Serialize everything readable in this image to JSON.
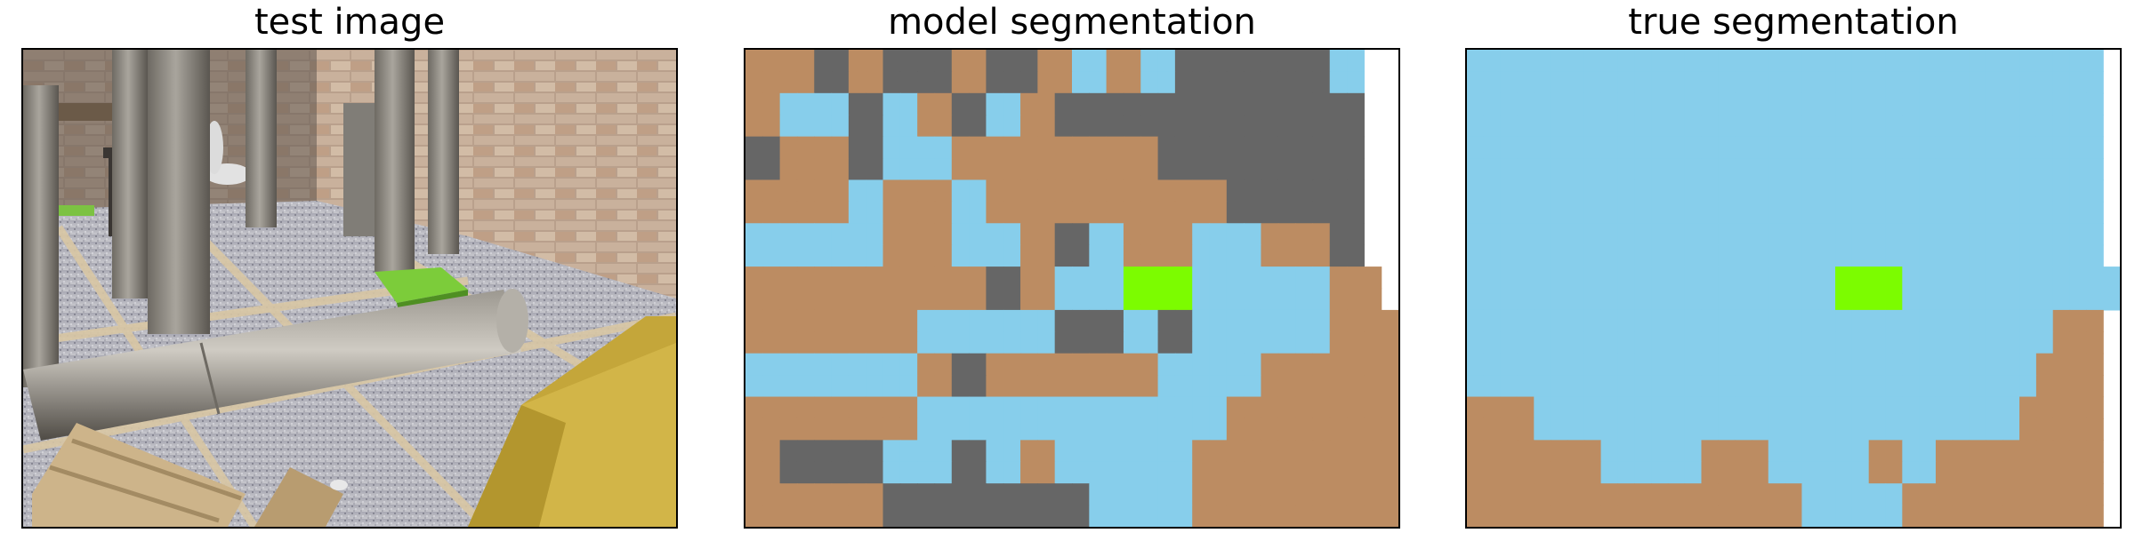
{
  "titles": [
    "test image",
    "model segmentation",
    "true segmentation"
  ],
  "palette": {
    "sky": "#87ceeb",
    "wood": "#bc8c62",
    "concrete": "#666666",
    "grass": "#7cfc00"
  },
  "legend_codes": {
    "S": "sky",
    "W": "wood",
    "C": "concrete",
    "G": "grass"
  },
  "model_segmentation_grid": [
    "WWWWCCWWCCCCWWCCCWWSSWWSSCCCCCCCCCSS",
    "WWWWCCWWCCCCWWCCCWWSSWWSSCCCCCCCCCSS",
    "WWSSSSCCSSWWCCSSWWCCCCCCCCCCCCCCCCCC",
    "WWSSSSCCSSWWCCSSWWCCCCCCCCCCCCCCCCCC",
    "CCWWWWCCSSSSWWWWWWWWWWWWCCCCCCCCCCCC",
    "CCWWWWCCSSSSWWWWWWWWWWWWCCCCCCCCCCCC",
    "WWWWWWSSWWWWSSWWWWWWWWWWWWWWCCCCCCCC",
    "WWWWWWSSWWWWSSWWWWWWWWWWWWWWCCCCCCCC",
    "SSSSSSSSWWWWSSSSWWCCSSWWWWSSSSWWWWCC",
    "SSSSSSSSWWWWSSSSWWCCSSWWWWSSSSWWWWCC",
    "WWWWWWWWWWWWWWCCWWSSSSGGGGSSSSSSSSWWW",
    "WWWWWWWWWWWWWWCCWWSSSSGGGGSSSSSSSSWWW",
    "WWWWWWWWWWSSSSSSSSCCCCSSCCSSSSSSSSWWWW",
    "WWWWWWWWWWSSSSSSSSCCCCSSCCSSSSSSSSWWWW",
    "SSSSSSSSSSWWCCWWWWWWWWWWSSSSSSWWWWWWWW",
    "SSSSSSSSSSWWCCWWWWWWWWWWSSSSSSWWWWWWWW",
    "WWWWWWWWWWSSSSSSSSSSSSSSSSSSWWWWWWWWWW",
    "WWWWWWWWWWSSSSSSSSSSSSSSSSSSWWWWWWWWWW",
    "WWCCCCCCSSSSCCSSWWSSSSSSSSWWWWWWWWWWWW",
    "WWCCCCCCSSSSCCSSWWSSSSSSSSWWWWWWWWWWWW",
    "WWWWWWWWCCCCCCCCCCCCSSSSSSWWWWWWWWWWWW",
    "WWWWWWWWCCCCCCCCCCCCSSSSSSWWWWWWWWWWWW"
  ],
  "true_segmentation_grid": [
    "SSSSSSSSSSSSSSSSSSSSSSSSSSSSSSSSSSSSSS",
    "SSSSSSSSSSSSSSSSSSSSSSSSSSSSSSSSSSSSSS",
    "SSSSSSSSSSSSSSSSSSSSSSSSSSSSSSSSSSSSSS",
    "SSSSSSSSSSSSSSSSSSSSSSSSSSSSSSSSSSSSSS",
    "SSSSSSSSSSSSSSSSSSSSSSSSSSSSSSSSSSSSSS",
    "SSSSSSSSSSSSSSSSSSSSSSSSSSSSSSSSSSSSSS",
    "SSSSSSSSSSSSSSSSSSSSSSSSSSSSSSSSSSSSSS",
    "SSSSSSSSSSSSSSSSSSSSSSSSSSSSSSSSSSSSSS",
    "SSSSSSSSSSSSSSSSSSSSSSSSSSSSSSSSSSSSSS",
    "SSSSSSSSSSSSSSSSSSSSSSSSSSSSSSSSSSSSSS",
    "SSSSSSSSSSSSSSSSSSSSSSGGGGSSSSSSSSSSSSS",
    "SSSSSSSSSSSSSSSSSSSSSSGGGGSSSSSSSSSSSSS",
    "SSSSSSSSSSSSSSSSSSSSSSSSSSSSSSSSSSSWWW",
    "SSSSSSSSSSSSSSSSSSSSSSSSSSSSSSSSSSSWWW",
    "SSSSSSSSSSSSSSSSSSSSSSSSSSSSSSSSSSWWWW",
    "SSSSSSSSSSSSSSSSSSSSSSSSSSSSSSSSSSWWWW",
    "WWWWSSSSSSSSSSSSSSSSSSSSSSSSSSSSSWWWWW",
    "WWWWSSSSSSSSSSSSSSSSSSSSSSSSSSSSSWWWWW",
    "WWWWWWWWSSSSSSWWWWSSSSSSWWSSWWWWWWWWWW",
    "WWWWWWWWSSSSSSWWWWSSSSSSWWSSWWWWWWWWWW",
    "WWWWWWWWWWWWWWWWWWWWSSSSSSWWWWWWWWWWWW",
    "WWWWWWWWWWWWWWWWWWWWSSSSSSWWWWWWWWWWWW"
  ]
}
